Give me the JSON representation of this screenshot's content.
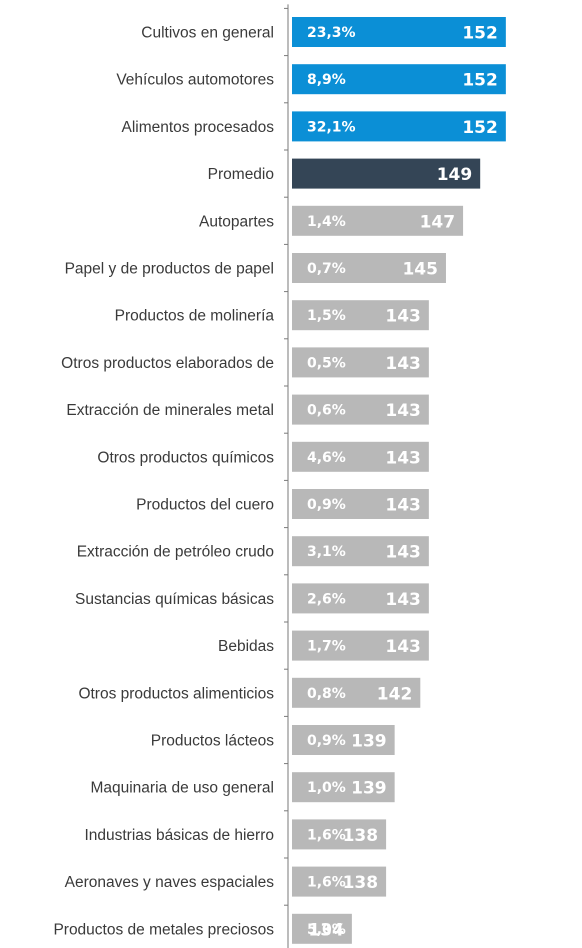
{
  "colors": {
    "highlight": "#0b8fd6",
    "average": "#344556",
    "other": "#b8b8b8",
    "axis": "#7a7a7a",
    "label_text": "#3a3a3a",
    "bar_text": "#ffffff"
  },
  "chart_data": {
    "type": "bar",
    "orientation": "horizontal",
    "title": "",
    "xlabel": "",
    "ylabel": "",
    "xlim": [
      0,
      158
    ],
    "grid": false,
    "legend": "none",
    "categories": [
      "Cultivos en general",
      "Vehículos automotores",
      "Alimentos procesados",
      "Promedio",
      "Autopartes",
      "Papel y de productos de papel",
      "Productos de molinería",
      "Otros productos elaborados de",
      "Extracción de minerales metal",
      "Otros productos químicos",
      "Productos del cuero",
      "Extracción de petróleo crudo",
      "Sustancias químicas básicas",
      "Bebidas",
      "Otros productos alimenticios",
      "Productos lácteos",
      "Maquinaria de uso general",
      "Industrias básicas de hierro",
      "Aeronaves y naves espaciales",
      "Productos de metales preciosos"
    ],
    "values": [
      152,
      152,
      152,
      149,
      147,
      145,
      143,
      143,
      143,
      143,
      143,
      143,
      143,
      143,
      142,
      139,
      139,
      138,
      138,
      134
    ],
    "value_labels": [
      "152",
      "152",
      "152",
      "149",
      "147",
      "145",
      "143",
      "143",
      "143",
      "143",
      "143",
      "143",
      "143",
      "143",
      "142",
      "139",
      "139",
      "138",
      "138",
      "134"
    ],
    "share_labels": [
      "23,3%",
      "8,9%",
      "32,1%",
      "",
      "1,4%",
      "0,7%",
      "1,5%",
      "0,5%",
      "0,6%",
      "4,6%",
      "0,9%",
      "3,1%",
      "2,6%",
      "1,7%",
      "0,8%",
      "0,9%",
      "1,0%",
      "1,6%",
      "1,6%",
      "5,0%"
    ],
    "bar_groups": [
      "highlight",
      "highlight",
      "highlight",
      "average",
      "other",
      "other",
      "other",
      "other",
      "other",
      "other",
      "other",
      "other",
      "other",
      "other",
      "other",
      "other",
      "other",
      "other",
      "other",
      "other"
    ]
  }
}
